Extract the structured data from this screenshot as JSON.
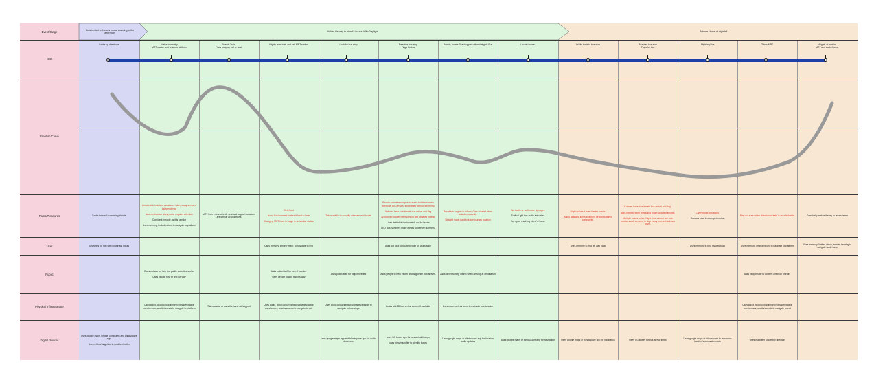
{
  "colors": {
    "label_bg": "#f6d3dd",
    "blue_bg": "#d6d8f4",
    "green_bg": "#ddf4dd",
    "orange_bg": "#f8e7d2",
    "timeline": "#1d3fa8",
    "curve": "#999999",
    "red_text": "#e0382a"
  },
  "row_labels": {
    "event": "Event/Stage",
    "task": "Task",
    "emotion": "Emotion Curve",
    "pains": "Pains/Pleasures",
    "user": "User",
    "public": "Public",
    "physical": "Physical  Infrastructure",
    "digital": "Digital devices"
  },
  "events": [
    {
      "text": "Gets invited to friend's house warming in the afternoon"
    },
    {
      "text": "Makes his way to friend's house. With Daylight."
    },
    {
      "text": "Returns Home at nightfall"
    }
  ],
  "tasks": [
    [
      "Looks up directions"
    ],
    [
      "Walks to nearby",
      "MRT station and reaches platform"
    ],
    [
      "Boards Train.",
      "Finds support, rail or seat."
    ],
    [
      "Alights from train and exit MRT station"
    ],
    [
      "Look for bus stop"
    ],
    [
      "Reaches bus stop",
      "Flags for bus"
    ],
    [
      "Boards, locate Seat/support rail and alights Bus"
    ],
    [
      "Locate house."
    ],
    [
      "Walks back to bus stop"
    ],
    [
      "Reaches bus stop",
      "Flags for bus"
    ],
    [
      "Alighting Bus"
    ],
    [
      "Takes MRT"
    ],
    [
      "Alights at familiar",
      "MRT and walks home."
    ]
  ],
  "pains": [
    [
      {
        "t": "Looks forward to meeting friends",
        "c": "n"
      }
    ],
    [
      {
        "t": "Unsolicited/ insistent assistance takes away sense of independence",
        "c": "r"
      },
      {
        "t": "New obstruction along route requires attention",
        "c": "r"
      },
      {
        "t": "Confident in route as it is familiar",
        "c": "n"
      },
      {
        "t": "Uses memory, limited vision, to navigate to platform",
        "c": "n"
      }
    ],
    [
      {
        "t": "MRT train entrance/exit, seat and support locations are similar across trains",
        "c": "n"
      }
    ],
    [
      {
        "t": "Gets Lost",
        "c": "r"
      },
      {
        "t": "Noisy Environment makes it hard to hear",
        "c": "r"
      },
      {
        "t": "Changing MRT lines is tough in unfamiliar station",
        "c": "r"
      }
    ],
    [
      {
        "t": "Takes awhile to actually orientate and locate",
        "c": "r"
      }
    ],
    [
      {
        "t": "People sometimes agree to assist but leave when their own bus arrives, sometimes without informing",
        "c": "r"
      },
      {
        "t": "If alone, have to estimate bus arrival and flag",
        "c": "r"
      },
      {
        "t": "Apps need to keep refreshing to get updated timings",
        "c": "r"
      },
      {
        "t": "Uses limited vision to watch out for buses",
        "c": "n"
      },
      {
        "t": "LED Bus Numbers make it easy to identify numbers.",
        "c": "n"
      }
    ],
    [
      {
        "t": "Bus driver forgets to inform. Gets irritated when asked repeatedly.",
        "c": "r"
      },
      {
        "t": "Straight roads hard to judge journey location",
        "c": "r"
      }
    ],
    [
      {
        "t": "No tactile or wall mode signages",
        "c": "r"
      },
      {
        "t": "Traffic Light has audio indicators",
        "c": "n"
      },
      {
        "t": "Joy upon reaching friend's house",
        "c": "n"
      }
    ],
    [
      {
        "t": "Night makes it even harder to see.",
        "c": "r"
      },
      {
        "t": "Audio aids and lights switched off due to public complaints.",
        "c": "r"
      }
    ],
    [
      {
        "t": "If alone, have to estimate bus arrival and flag.",
        "c": "r"
      },
      {
        "t": "Apps need to keep refreshing to get updated timings.",
        "c": "r"
      },
      {
        "t": "Multiple buses arrive. Night time cannot see bus numbers well so need to stop every bus and ask bus driver.",
        "c": "r"
      }
    ],
    [
      {
        "t": "Overshoots bus stops",
        "c": "r"
      },
      {
        "t": "Crosses road to change direction",
        "c": "n"
      }
    ],
    [
      {
        "t": "May not sure which direction of train is on which side",
        "c": "r"
      }
    ],
    [
      {
        "t": "Familiarity makes it easy to return home",
        "c": "n"
      }
    ]
  ],
  "user": [
    "Searches for info with colourfast inputs",
    "",
    "",
    "Uses memory, limited vision, to navigate to exit",
    "",
    "Asks out loud to locate people for assistance",
    "",
    "",
    "Uses memory to find his way back",
    "",
    "Uses memory to find his way back",
    "Uses memory, limited vision, to navigate to platform",
    "Uses memory, limited vision, smells, hearing to navigate back home"
  ],
  "public": [
    [],
    [
      "Does not ask for help but public sometimes offer",
      "Uses people flow to find his way"
    ],
    [],
    [
      "Asks public/staff for help if needed",
      "Uses people flow to find his way"
    ],
    [
      "Asks public/staff for help if needed"
    ],
    [
      "Asks people to help inform and flag when bus arrives."
    ],
    [
      "Asks driver to help inform when arriving at destination"
    ],
    [],
    [],
    [],
    [],
    [
      "Asks people/staff to confirm direction of train."
    ],
    []
  ],
  "physical": [
    "",
    "Uses audio, good colour/lighting signages/tactile cues/arrows, smells/sounds to navigate to platform",
    "Takes a seat or uses the hand rail/support",
    "Uses audio, good colour/lighting signages/tactile cues/arrows, smells/sounds to navigate to exit",
    "Uses good colour/lighting signages/sounds to navigate to bus stops",
    "Looks at LED bus arrival screen if available",
    "Uses cues such as turns to estimate bus location",
    "",
    "",
    "",
    "",
    "Uses audio, good colour/lighting signages/tactile cues/arrows, smells/sounds to navigate to exit",
    ""
  ],
  "digital": [
    [
      "uses google maps (phone, computer) and blindsquare app.",
      "Uses a bino/magnifier to read text better"
    ],
    [],
    [],
    [],
    [
      "uses google maps app and blindsquare app for audio directions"
    ],
    [
      "uses SG buses app for bus arrival timings",
      "uses bino/magnifier to identify buses"
    ],
    [
      "Uses google maps or blindsquare app for location audio updates"
    ],
    [
      "Uses google maps or blindsquare app for navigation"
    ],
    [
      "Uses google maps or blindsquare app for navigation"
    ],
    [
      "Uses SG Buses for bus arrival times"
    ],
    [
      "Uses google maps or blindsquare to announce location/stops and reroute"
    ],
    [
      "Uses magnifier to identify direction"
    ],
    []
  ]
}
